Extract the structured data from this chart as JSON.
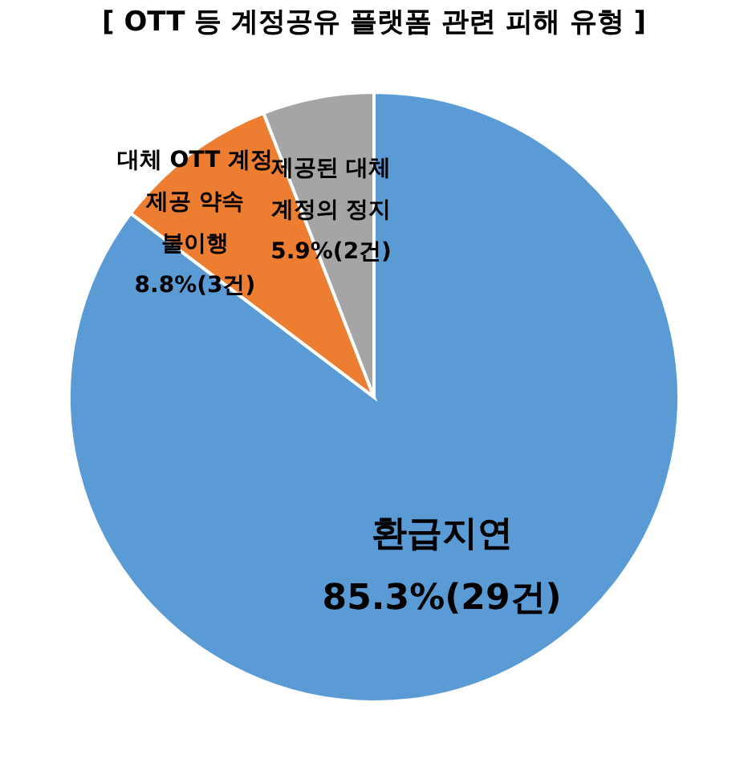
{
  "chart_data": {
    "type": "pie",
    "title": "[ OTT 등 계정공유 플랫폼 관련 피해 유형 ]",
    "categories": [
      "환급지연",
      "대체 OTT 계정\n제공 약속\n불이행",
      "제공된 대체\n계정의 정지"
    ],
    "values": [
      85.3,
      8.8,
      5.9
    ],
    "value_labels": [
      "85.3%(29건)",
      "8.8%(3건)",
      "5.9%(2건)"
    ],
    "colors": [
      "#5b9bd5",
      "#ed7d31",
      "#a5a5a5"
    ],
    "legend": false
  }
}
